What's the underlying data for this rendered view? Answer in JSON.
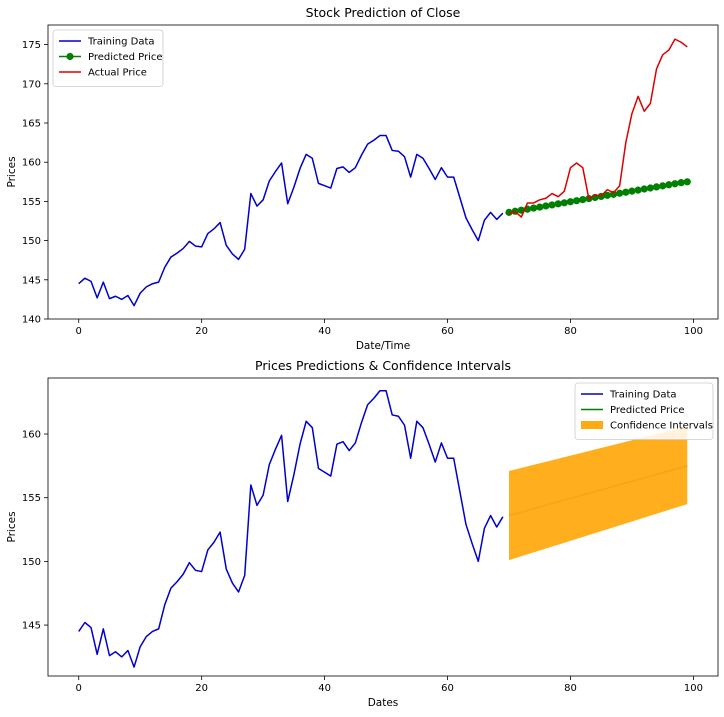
{
  "chart_data": [
    {
      "type": "line",
      "title": "Stock Prediction of Close",
      "xlabel": "Date/Time",
      "ylabel": "Prices",
      "xlim": [
        -5,
        104
      ],
      "ylim": [
        140,
        177.5
      ],
      "xticks": [
        0,
        20,
        40,
        60,
        80,
        100
      ],
      "yticks": [
        140,
        145,
        150,
        155,
        160,
        165,
        170,
        175
      ],
      "legend_position": "top-left",
      "grid": false,
      "series": [
        {
          "name": "Training Data",
          "color": "#0000cc",
          "x_start": 0,
          "values": [
            144.5,
            145.2,
            144.8,
            142.7,
            144.7,
            142.6,
            142.9,
            142.5,
            143.0,
            141.7,
            143.3,
            144.1,
            144.5,
            144.7,
            146.6,
            147.9,
            148.4,
            149.0,
            149.9,
            149.3,
            149.2,
            150.9,
            151.5,
            152.3,
            149.4,
            148.3,
            147.6,
            148.9,
            156.0,
            154.4,
            155.2,
            157.6,
            158.8,
            159.9,
            154.7,
            156.8,
            159.2,
            161.0,
            160.5,
            157.3,
            157.0,
            156.7,
            159.2,
            159.4,
            158.7,
            159.3,
            160.9,
            162.3,
            162.8,
            163.4,
            163.4,
            161.5,
            161.4,
            160.7,
            158.1,
            161.0,
            160.5,
            159.2,
            157.8,
            159.3,
            158.1,
            158.1,
            155.5,
            152.9,
            151.4,
            150.0,
            152.6,
            153.6,
            152.7,
            153.5
          ]
        },
        {
          "name": "Predicted Price",
          "color": "#008000",
          "marker": "circle",
          "x_start": 70,
          "values": [
            153.6,
            153.74,
            153.88,
            154.01,
            154.15,
            154.28,
            154.42,
            154.55,
            154.69,
            154.82,
            154.96,
            155.09,
            155.23,
            155.36,
            155.5,
            155.63,
            155.77,
            155.9,
            156.04,
            156.17,
            156.31,
            156.44,
            156.58,
            156.71,
            156.85,
            156.98,
            157.12,
            157.25,
            157.39,
            157.5
          ]
        },
        {
          "name": "Actual Price",
          "color": "#dd0000",
          "x_start": 70,
          "values": [
            153.5,
            153.7,
            153.0,
            154.8,
            154.8,
            155.2,
            155.4,
            156.0,
            155.6,
            156.3,
            159.3,
            159.9,
            159.3,
            155.3,
            155.8,
            155.7,
            156.5,
            156.1,
            157.0,
            162.5,
            166.2,
            168.4,
            166.5,
            167.5,
            171.9,
            173.7,
            174.3,
            175.7,
            175.3,
            174.7
          ]
        }
      ]
    },
    {
      "type": "line",
      "title": "Prices Predictions & Confidence Intervals",
      "xlabel": "Dates",
      "ylabel": "Prices",
      "xlim": [
        -5,
        104
      ],
      "ylim": [
        141,
        164.4
      ],
      "xticks": [
        0,
        20,
        40,
        60,
        80,
        100
      ],
      "yticks": [
        145,
        150,
        155,
        160
      ],
      "legend_position": "top-right",
      "grid": false,
      "series": [
        {
          "name": "Training Data",
          "color": "#0000cc",
          "x_start": 0,
          "values": [
            144.5,
            145.2,
            144.8,
            142.7,
            144.7,
            142.6,
            142.9,
            142.5,
            143.0,
            141.7,
            143.3,
            144.1,
            144.5,
            144.7,
            146.6,
            147.9,
            148.4,
            149.0,
            149.9,
            149.3,
            149.2,
            150.9,
            151.5,
            152.3,
            149.4,
            148.3,
            147.6,
            148.9,
            156.0,
            154.4,
            155.2,
            157.6,
            158.8,
            159.9,
            154.7,
            156.8,
            159.2,
            161.0,
            160.5,
            157.3,
            157.0,
            156.7,
            159.2,
            159.4,
            158.7,
            159.3,
            160.9,
            162.3,
            162.8,
            163.4,
            163.4,
            161.5,
            161.4,
            160.7,
            158.1,
            161.0,
            160.5,
            159.2,
            157.8,
            159.3,
            158.1,
            158.1,
            155.5,
            152.9,
            151.4,
            150.0,
            152.6,
            153.6,
            152.7,
            153.5
          ]
        },
        {
          "name": "Predicted Price",
          "color": "#008000",
          "x": [
            70,
            99
          ],
          "values": [
            153.6,
            157.5
          ]
        },
        {
          "name": "Confidence Intervals",
          "color": "#ffaa11",
          "type": "band",
          "x": [
            70,
            99
          ],
          "lower": [
            150.1,
            154.5
          ],
          "upper": [
            157.1,
            160.6
          ]
        }
      ]
    }
  ]
}
